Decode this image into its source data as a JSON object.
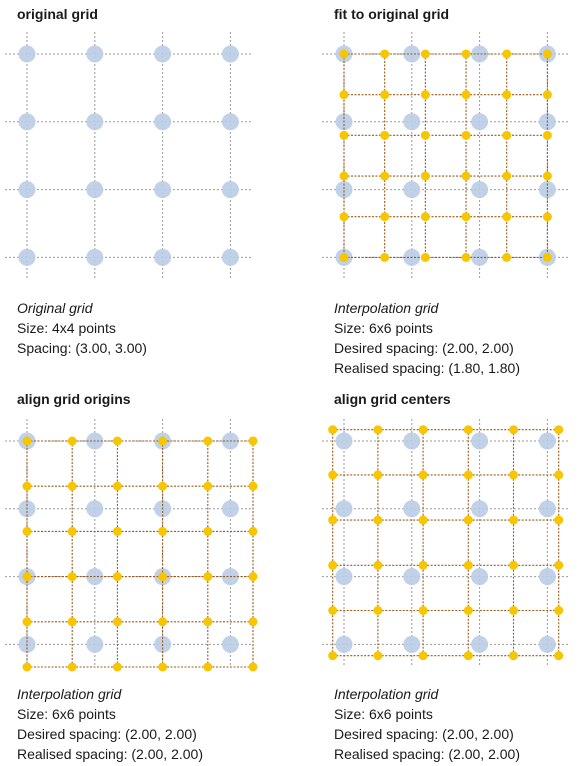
{
  "colors": {
    "original_point": "#b9cce6",
    "original_grid_line": "#9a9a9a",
    "interp_point": "#f7c600",
    "interp_grid_line": "#9b5a1c",
    "background": "#ffffff"
  },
  "panels": [
    {
      "id": "original",
      "title": "original grid",
      "caption": {
        "title": "Original grid",
        "lines": [
          "Size: 4x4 points",
          "Spacing: (3.00, 3.00)"
        ]
      },
      "original_grid": {
        "size": [
          4,
          4
        ],
        "spacing": [
          3.0,
          3.0
        ]
      },
      "interp_grid": null
    },
    {
      "id": "fit",
      "title": "fit to original grid",
      "caption": {
        "title": "Interpolation grid",
        "lines": [
          "Size: 6x6 points",
          "Desired spacing: (2.00, 2.00)",
          "Realised spacing: (1.80, 1.80)"
        ]
      },
      "original_grid": {
        "size": [
          4,
          4
        ],
        "spacing": [
          3.0,
          3.0
        ]
      },
      "interp_grid": {
        "size": [
          6,
          6
        ],
        "spacing": [
          1.8,
          1.8
        ],
        "offset": [
          0.0,
          0.0
        ]
      }
    },
    {
      "id": "origins",
      "title": "align grid origins",
      "caption": {
        "title": "Interpolation grid",
        "lines": [
          "Size: 6x6 points",
          "Desired spacing: (2.00, 2.00)",
          "Realised spacing: (2.00, 2.00)"
        ]
      },
      "original_grid": {
        "size": [
          4,
          4
        ],
        "spacing": [
          3.0,
          3.0
        ]
      },
      "interp_grid": {
        "size": [
          6,
          6
        ],
        "spacing": [
          2.0,
          2.0
        ],
        "offset": [
          0.0,
          0.0
        ]
      }
    },
    {
      "id": "centers",
      "title": "align grid centers",
      "caption": {
        "title": "Interpolation grid",
        "lines": [
          "Size: 6x6 points",
          "Desired spacing: (2.00, 2.00)",
          "Realised spacing: (2.00, 2.00)"
        ]
      },
      "original_grid": {
        "size": [
          4,
          4
        ],
        "spacing": [
          3.0,
          3.0
        ]
      },
      "interp_grid": {
        "size": [
          6,
          6
        ],
        "spacing": [
          2.0,
          2.0
        ],
        "offset": [
          -0.5,
          -0.5
        ]
      }
    }
  ]
}
